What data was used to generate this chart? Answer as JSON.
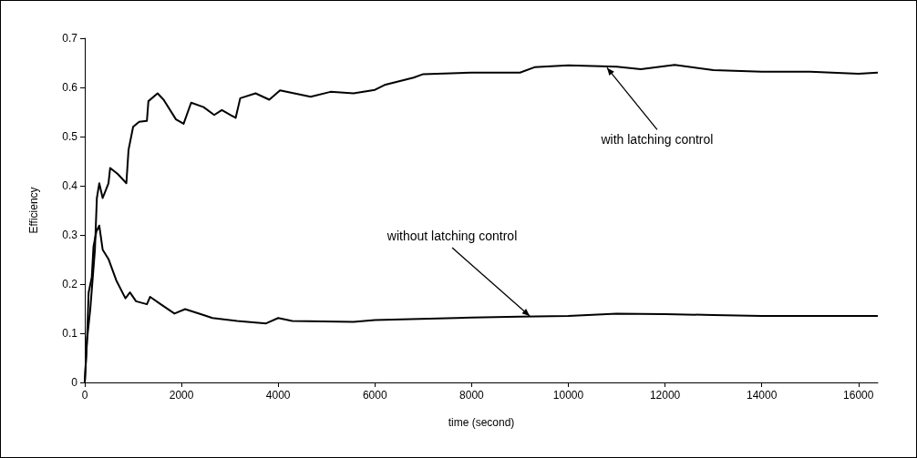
{
  "chart_data": {
    "type": "line",
    "xlabel": "time (second)",
    "ylabel": "Efficiency",
    "xlim": [
      0,
      16400
    ],
    "xticks": [
      0,
      2000,
      4000,
      6000,
      8000,
      10000,
      12000,
      14000,
      16000
    ],
    "ylim": [
      0,
      0.7
    ],
    "yticks": [
      0,
      0.1,
      0.2,
      0.3,
      0.4,
      0.5,
      0.6,
      0.7
    ],
    "grid": false,
    "marker": "none",
    "line_style": "solid",
    "series": [
      {
        "color": "#000000",
        "x": [
          0,
          50,
          115,
          210,
          250,
          300,
          370,
          490,
          525,
          680,
          860,
          905,
          1000,
          1125,
          1285,
          1316,
          1506,
          1630,
          1886,
          2044,
          2200,
          2456,
          2677,
          2835,
          3120,
          3215,
          3532,
          3816,
          4038,
          4671,
          5082,
          5557,
          6000,
          6200,
          6800,
          7000,
          8000,
          9000,
          9300,
          10000,
          11000,
          11500,
          12200,
          13000,
          14000,
          15000,
          16000,
          16400
        ],
        "values": [
          0,
          0.09,
          0.15,
          0.27,
          0.375,
          0.405,
          0.375,
          0.405,
          0.436,
          0.424,
          0.405,
          0.473,
          0.52,
          0.53,
          0.532,
          0.572,
          0.588,
          0.575,
          0.535,
          0.526,
          0.569,
          0.56,
          0.544,
          0.554,
          0.538,
          0.578,
          0.588,
          0.575,
          0.594,
          0.581,
          0.591,
          0.588,
          0.595,
          0.605,
          0.62,
          0.627,
          0.63,
          0.63,
          0.641,
          0.645,
          0.642,
          0.637,
          0.646,
          0.635,
          0.632,
          0.632,
          0.628,
          0.63
        ]
      },
      {
        "color": "#000000",
        "x": [
          0,
          50,
          80,
          145,
          180,
          240,
          300,
          370,
          490,
          650,
          840,
          935,
          1060,
          1285,
          1350,
          1570,
          1855,
          2075,
          2456,
          2640,
          3150,
          3750,
          4000,
          4290,
          5557,
          6000,
          8000,
          9000,
          10000,
          11000,
          12000,
          13000,
          14000,
          16400
        ],
        "values": [
          0,
          0.097,
          0.183,
          0.214,
          0.276,
          0.307,
          0.319,
          0.27,
          0.251,
          0.208,
          0.171,
          0.183,
          0.165,
          0.159,
          0.174,
          0.159,
          0.14,
          0.149,
          0.137,
          0.131,
          0.125,
          0.12,
          0.131,
          0.125,
          0.123,
          0.127,
          0.132,
          0.134,
          0.135,
          0.14,
          0.139,
          0.137,
          0.135,
          0.135
        ]
      }
    ],
    "annotations": [
      {
        "text": "with latching control",
        "x": 10800,
        "y": 0.64
      },
      {
        "text": "without latching control",
        "x": 9200,
        "y": 0.135
      }
    ]
  }
}
